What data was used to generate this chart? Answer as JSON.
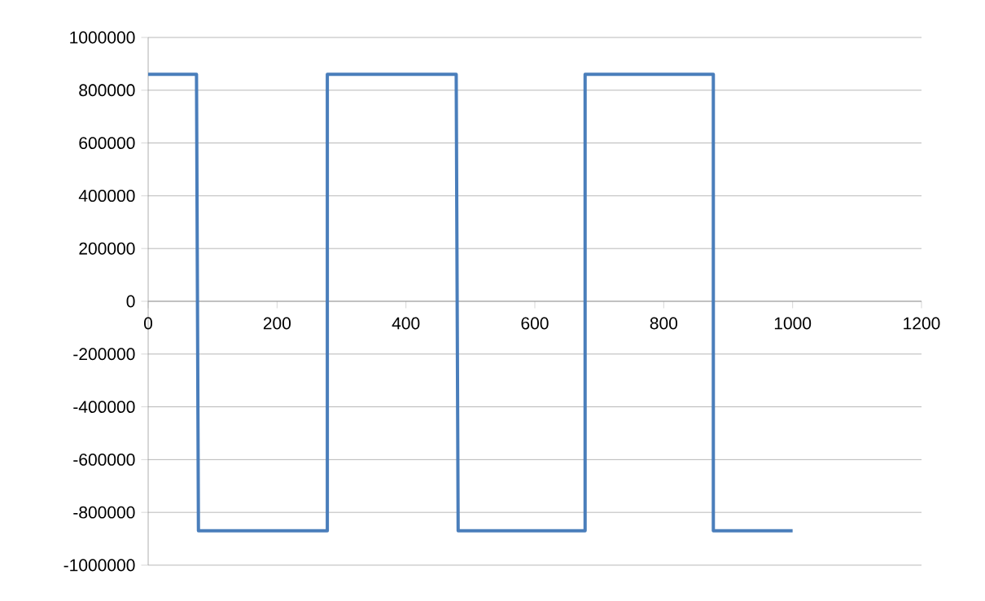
{
  "chart_data": {
    "type": "line",
    "x": [
      0,
      75,
      78,
      278,
      278,
      478,
      481,
      678,
      678,
      877,
      877,
      1000
    ],
    "series": [
      {
        "color": "#4a7ebb",
        "values": [
          860000,
          860000,
          -870000,
          -870000,
          860000,
          860000,
          -870000,
          -870000,
          860000,
          860000,
          -870000,
          -870000
        ]
      }
    ],
    "xlim": [
      0,
      1200
    ],
    "xticks": [
      0,
      200,
      400,
      600,
      800,
      1000,
      1200
    ],
    "ylim": [
      -1000000,
      1000000
    ],
    "yticks": [
      -1000000,
      -800000,
      -600000,
      -400000,
      -200000,
      0,
      200000,
      400000,
      600000,
      800000,
      1000000
    ],
    "grid": "y",
    "marker": "none",
    "line_style": "solid",
    "legend": false
  }
}
